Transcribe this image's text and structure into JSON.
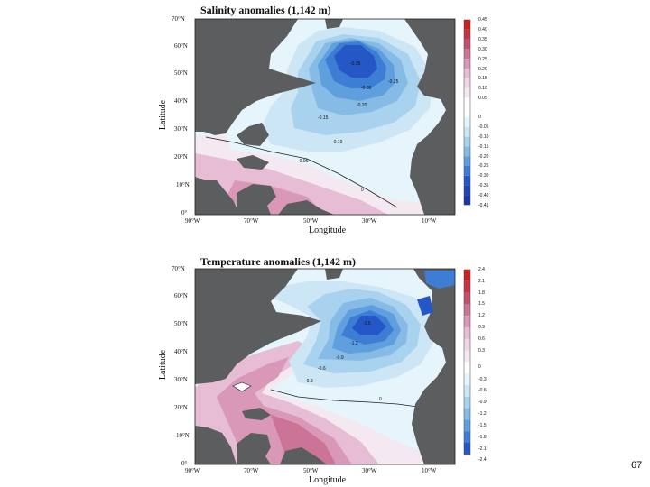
{
  "page_number": "67",
  "colors": {
    "land": "#5b5d5f",
    "blue_levels": [
      "#e6f4fb",
      "#cde6f6",
      "#a9d2ef",
      "#86bbe6",
      "#5f9fdd",
      "#3d7dd4",
      "#2557c7",
      "#1a37a8"
    ],
    "red_levels": [
      "#f5e9f1",
      "#efd6e6",
      "#e6bdd4",
      "#d998b8",
      "#cb7496",
      "#c0506d",
      "#c23544",
      "#cc1f1f"
    ]
  },
  "panels": [
    {
      "title": "Salinity anomalies (1,142 m)",
      "ylabel": "Latitude",
      "xlabel": "Longitude",
      "lat_ticks": [
        "70°N",
        "60°N",
        "50°N",
        "40°N",
        "30°N",
        "20°N",
        "10°N",
        "0°"
      ],
      "lon_ticks": [
        "90°W",
        "70°W",
        "50°W",
        "30°W",
        "10°W"
      ],
      "colorbar_ticks": [
        "0.45",
        "0.40",
        "0.35",
        "0.30",
        "0.25",
        "0.20",
        "0.15",
        "0.10",
        "0.05",
        "0",
        "-0.05",
        "-0.10",
        "-0.15",
        "-0.20",
        "-0.25",
        "-0.30",
        "-0.35",
        "-0.40",
        "-0.45"
      ],
      "contour_labels": [
        "-0.35",
        "-0.30",
        "-0.25",
        "-0.20",
        "-0.15",
        "-0.10",
        "-0.05",
        "0"
      ]
    },
    {
      "title": "Temperature anomalies (1,142 m)",
      "ylabel": "Latitude",
      "xlabel": "Longitude",
      "lat_ticks": [
        "70°N",
        "60°N",
        "50°N",
        "40°N",
        "30°N",
        "20°N",
        "10°N",
        "0°"
      ],
      "lon_ticks": [
        "90°W",
        "70°W",
        "50°W",
        "30°W",
        "10°W"
      ],
      "colorbar_ticks": [
        "2.4",
        "2.1",
        "1.8",
        "1.5",
        "1.2",
        "0.9",
        "0.6",
        "0.3",
        "0",
        "-0.3",
        "-0.6",
        "-0.9",
        "-1.2",
        "-1.5",
        "-1.8",
        "-2.1",
        "-2.4"
      ],
      "contour_labels": [
        "-1.5",
        "-1.2",
        "-0.9",
        "-0.6",
        "-0.3",
        "0"
      ]
    }
  ]
}
